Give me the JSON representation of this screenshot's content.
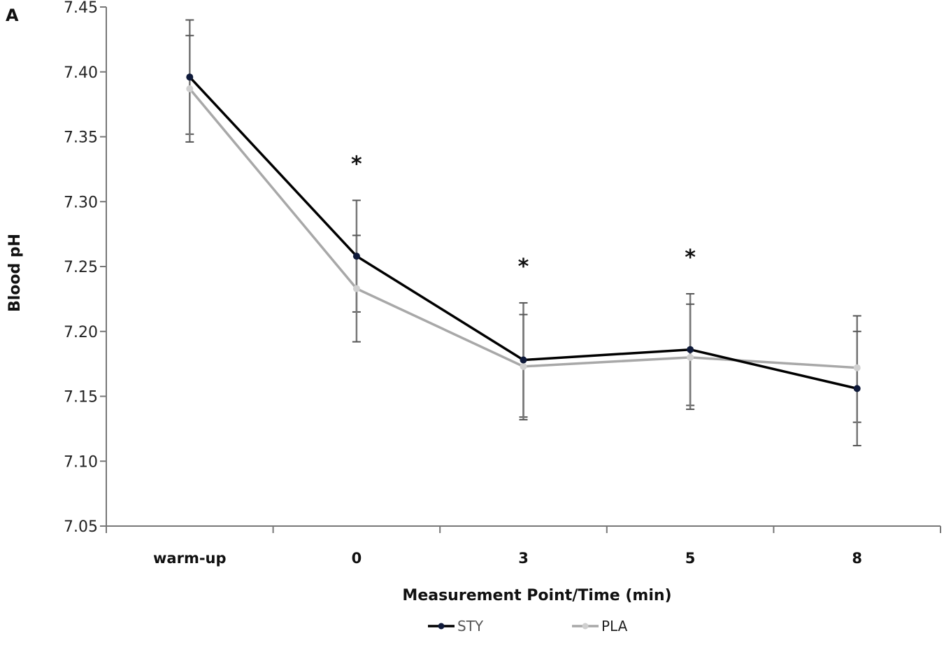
{
  "panel_label": "A",
  "chart_data": {
    "type": "line",
    "title": "",
    "xlabel": "Measurement Point/Time (min)",
    "ylabel": "Blood pH",
    "categories": [
      "warm-up",
      "0",
      "3",
      "5",
      "8"
    ],
    "ylim": [
      7.05,
      7.45
    ],
    "yticks": [
      "7.05",
      "7.10",
      "7.15",
      "7.20",
      "7.25",
      "7.30",
      "7.35",
      "7.40",
      "7.45"
    ],
    "grid": false,
    "legend": "bottom",
    "series": [
      {
        "name": "STY",
        "color": "#000000",
        "marker_color": "#0f1a3a",
        "values": [
          7.396,
          7.258,
          7.178,
          7.186,
          7.156
        ],
        "error_upper": [
          7.44,
          7.301,
          7.222,
          7.229,
          7.212
        ],
        "error_lower": [
          7.352,
          7.215,
          7.134,
          7.143,
          7.13
        ]
      },
      {
        "name": "PLA",
        "color": "#a8a8a8",
        "marker_color": "#d0d0d0",
        "values": [
          7.387,
          7.233,
          7.173,
          7.18,
          7.172
        ],
        "error_upper": [
          7.428,
          7.274,
          7.213,
          7.221,
          7.2
        ],
        "error_lower": [
          7.346,
          7.192,
          7.132,
          7.14,
          7.112
        ]
      }
    ],
    "annotations": [
      {
        "category": "0",
        "text": "*"
      },
      {
        "category": "3",
        "text": "*"
      },
      {
        "category": "5",
        "text": "*"
      }
    ]
  }
}
